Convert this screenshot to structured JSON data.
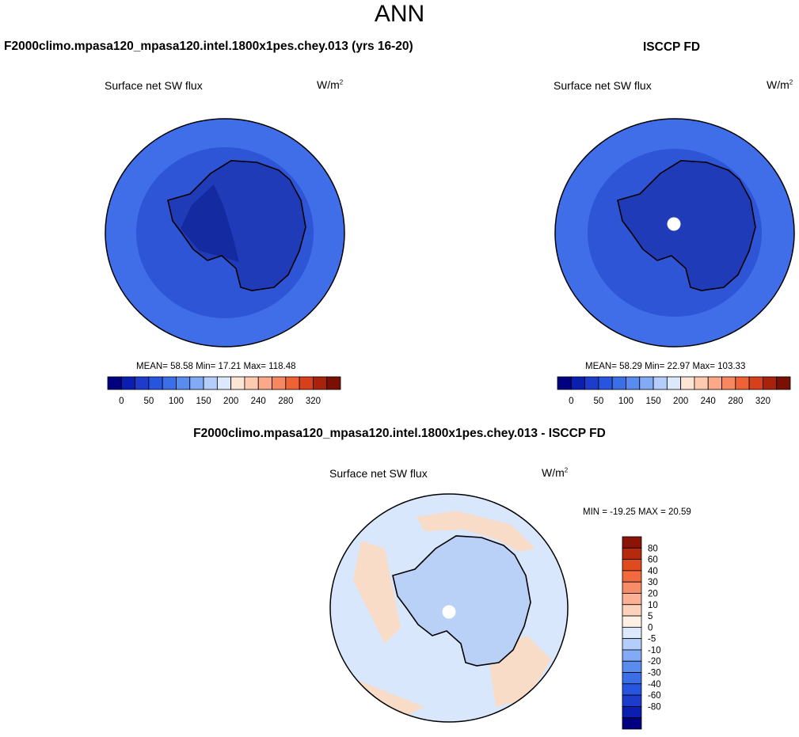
{
  "page": {
    "title": "ANN"
  },
  "colors": {
    "seq_palette": [
      "#000080",
      "#0a1eb0",
      "#1e3ccc",
      "#2855e0",
      "#3c6ee8",
      "#5a8cf0",
      "#82aaf5",
      "#b4cdfa",
      "#dce8fc",
      "#fde5d6",
      "#fdc9af",
      "#fba988",
      "#f78760",
      "#ef6236",
      "#d8401c",
      "#a8230c",
      "#7a0f06"
    ],
    "div_palette": [
      "#000080",
      "#0a1eb0",
      "#1e3ccc",
      "#2855e0",
      "#3c6ee8",
      "#5a8cf0",
      "#82aaf5",
      "#b4cdfa",
      "#dce8fc",
      "#fff0e6",
      "#fdd2ba",
      "#fcb194",
      "#f78d68",
      "#f26a3d",
      "#e04a1f",
      "#b5290c",
      "#8a1406"
    ],
    "ocean_a": "#3f6ee8",
    "ocean_b": "#2e55d6",
    "ice_a": "#1f3bb8",
    "ice_b": "#142aa0",
    "diff_a": "#d8e7fb",
    "diff_b": "#b9d1f6",
    "diff_c": "#f8dcc8"
  },
  "chart_data": [
    {
      "type": "heatmap",
      "id": "model",
      "title": "F2000climo.mpasa120_mpasa120.intel.1800x1pes.chey.013 (yrs 16-20)",
      "field": "Surface net SW flux",
      "units_base": "W/m",
      "units_exp": "2",
      "stats_text": "MEAN=  58.58  Min=  17.21  Max= 118.48",
      "mean": 58.58,
      "min": 17.21,
      "max": 118.48,
      "colorbar_ticks": [
        "0",
        "50",
        "100",
        "150",
        "200",
        "240",
        "280",
        "320"
      ],
      "levels": [
        0,
        25,
        50,
        75,
        100,
        125,
        150,
        175,
        200,
        220,
        240,
        260,
        280,
        300,
        320
      ]
    },
    {
      "type": "heatmap",
      "id": "obs",
      "title": "ISCCP FD",
      "field": "Surface net SW flux",
      "units_base": "W/m",
      "units_exp": "2",
      "stats_text": "MEAN=  58.29  Min=  22.97  Max= 103.33",
      "mean": 58.29,
      "min": 22.97,
      "max": 103.33,
      "colorbar_ticks": [
        "0",
        "50",
        "100",
        "150",
        "200",
        "240",
        "280",
        "320"
      ],
      "levels": [
        0,
        25,
        50,
        75,
        100,
        125,
        150,
        175,
        200,
        220,
        240,
        260,
        280,
        300,
        320
      ]
    },
    {
      "type": "heatmap",
      "id": "diff",
      "title": "F2000climo.mpasa120_mpasa120.intel.1800x1pes.chey.013 - ISCCP FD",
      "field": "Surface net SW flux",
      "units_base": "W/m",
      "units_exp": "2",
      "stats_text": "MIN = -19.25 MAX =  20.59",
      "min": -19.25,
      "max": 20.59,
      "colorbar_ticks": [
        "80",
        "60",
        "40",
        "30",
        "20",
        "10",
        "5",
        "0",
        "-5",
        "-10",
        "-20",
        "-30",
        "-40",
        "-60",
        "-80"
      ]
    }
  ]
}
